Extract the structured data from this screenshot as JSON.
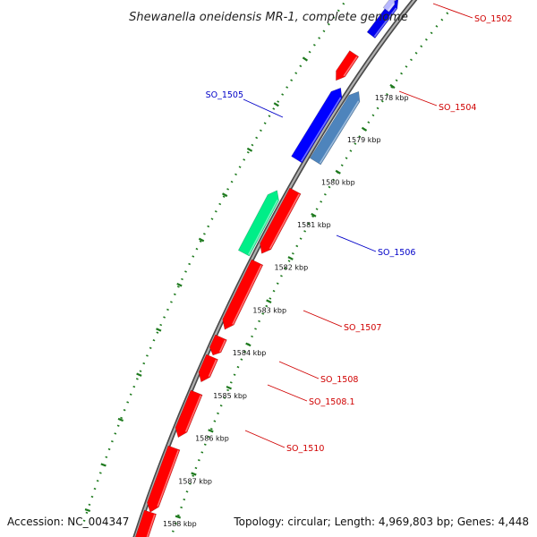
{
  "title": "Shewanella oneidensis MR-1, complete genome",
  "footer": {
    "accession": "Accession: NC_004347",
    "topology": "Topology: circular; Length: 4,969,803 bp; Genes: 4,448"
  },
  "colors": {
    "backbone": "#8a8a8a",
    "tick_track": "#1e7a1e",
    "forward_label": "#0000c8",
    "reverse_label": "#d00000"
  },
  "ticks": [
    {
      "label": "1578 kbp"
    },
    {
      "label": "1579 kbp"
    },
    {
      "label": "1580 kbp"
    },
    {
      "label": "1581 kbp"
    },
    {
      "label": "1582 kbp"
    },
    {
      "label": "1583 kbp"
    },
    {
      "label": "1584 kbp"
    },
    {
      "label": "1585 kbp"
    },
    {
      "label": "1586 kbp"
    },
    {
      "label": "1587 kbp"
    },
    {
      "label": "1588 kbp"
    }
  ],
  "genes": [
    {
      "name": "SO_1502",
      "strand": "reverse",
      "color": "#ff0000"
    },
    {
      "name": "SO_1504",
      "strand": "reverse",
      "color": "#ff0000"
    },
    {
      "name": "SO_1505",
      "strand": "forward",
      "color": "#0000ff"
    },
    {
      "name": "SO_1506",
      "strand": "forward",
      "color": "#00ee88"
    },
    {
      "name": "SO_1507",
      "strand": "reverse",
      "color": "#ff0000"
    },
    {
      "name": "SO_1508",
      "strand": "reverse",
      "color": "#ff0000"
    },
    {
      "name": "SO_1508.1",
      "strand": "reverse",
      "color": "#ff0000"
    },
    {
      "name": "SO_1510",
      "strand": "reverse",
      "color": "#ff0000"
    }
  ]
}
